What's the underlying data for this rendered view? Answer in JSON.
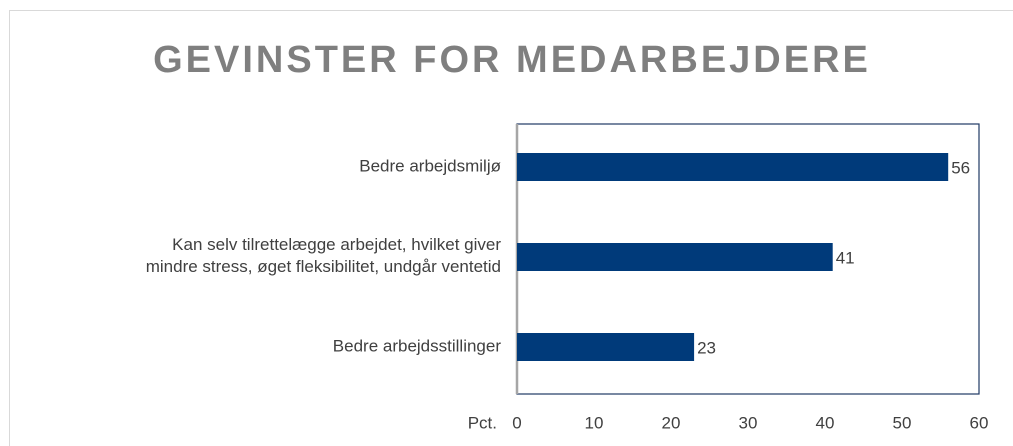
{
  "chart_data": {
    "type": "bar",
    "orientation": "horizontal",
    "title": "GEVINSTER FOR MEDARBEJDERE",
    "x_label": "Pct.",
    "categories": [
      "Bedre arbejdsmiljø",
      "Kan selv tilrettelægge arbejdet, hvilket giver\nmindre stress, øget fleksibilitet, undgår ventetid",
      "Bedre arbejdsstillinger"
    ],
    "values": [
      56,
      41,
      23
    ],
    "color": "#003a7a",
    "xlim": [
      0,
      60
    ],
    "xticks": [
      0,
      10,
      20,
      30,
      40,
      50,
      60
    ],
    "grid": false
  }
}
